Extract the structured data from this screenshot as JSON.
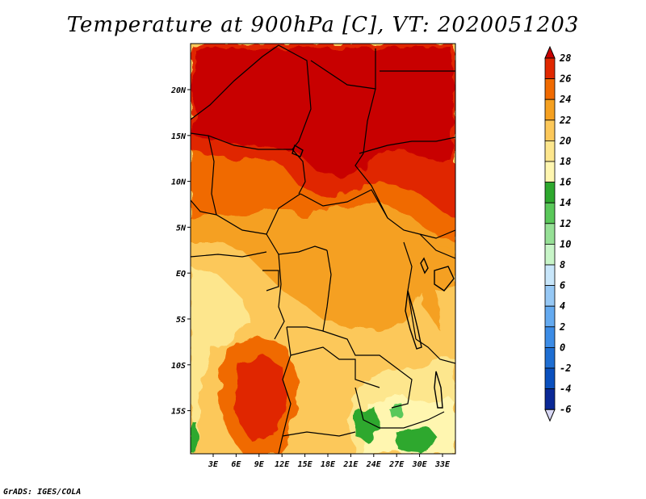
{
  "title": "Temperature at 900hPa [C], VT: 2020051203",
  "credit": "GrADS: IGES/COLA",
  "map": {
    "lat_labels": [
      "20N",
      "15N",
      "10N",
      "5N",
      "EQ",
      "5S",
      "10S",
      "15S"
    ],
    "lon_labels": [
      "3E",
      "6E",
      "9E",
      "12E",
      "15E",
      "18E",
      "21E",
      "24E",
      "27E",
      "30E",
      "33E"
    ],
    "region": "Central Africa",
    "variable": "Temperature",
    "units": "C"
  },
  "colorbar": {
    "labels": [
      "28",
      "26",
      "24",
      "22",
      "20",
      "18",
      "16",
      "14",
      "12",
      "10",
      "8",
      "6",
      "4",
      "2",
      "0",
      "-2",
      "-4",
      "-6"
    ],
    "colors": [
      "#c80000",
      "#e02800",
      "#f06a00",
      "#f5a020",
      "#fcc85a",
      "#fde68d",
      "#fff6b0",
      "#2ea82e",
      "#5ac85a",
      "#96e096",
      "#c8f5c8",
      "#c8e6fa",
      "#96c8f5",
      "#64aaf0",
      "#3c8ce6",
      "#1e6ed2",
      "#0a50be",
      "#0a2896",
      "#00126e",
      "#d8d8f5"
    ]
  }
}
